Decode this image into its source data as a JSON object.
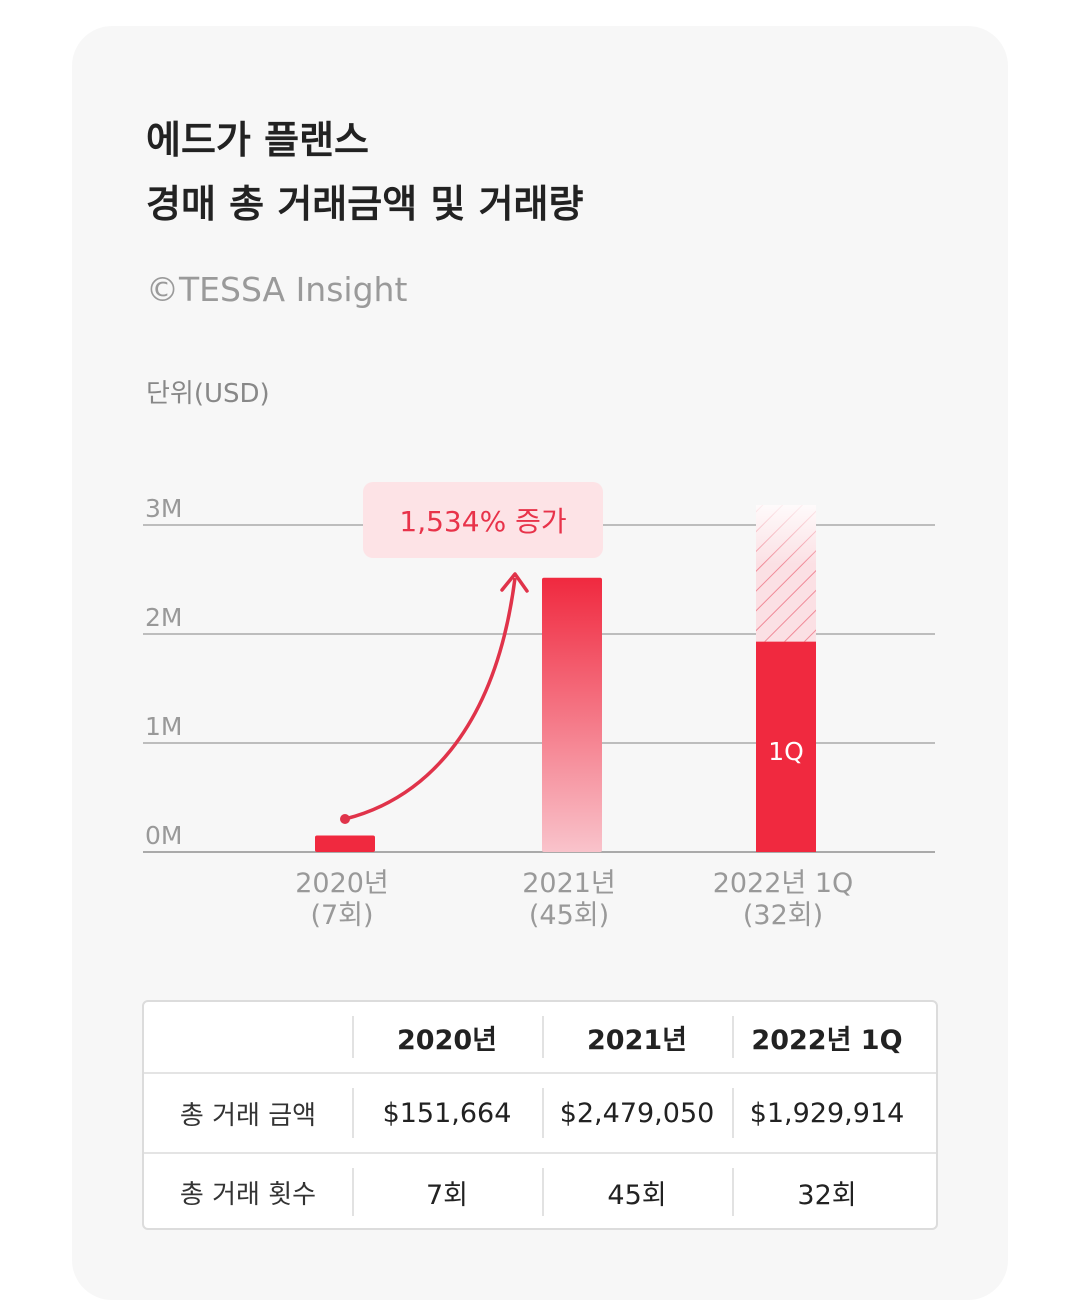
{
  "title": [
    "에드가 플랜스",
    "경매 총 거래금액 및 거래량"
  ],
  "credit": "©TESSA Insight",
  "unit_label": "단위(USD)",
  "annotation": "1,534% 증가",
  "colors": {
    "bar_red": "#f0293f",
    "annotation_text": "#e8334a",
    "annotation_bg": "#fde3e6",
    "grid": "#bdbdbd",
    "axis_text": "#999999"
  },
  "chart_data": {
    "type": "bar",
    "categories": [
      "2020년\n(7회)",
      "2021년\n(45회)",
      "2022년 1Q\n(32회)"
    ],
    "values": [
      151664,
      2479050,
      1929914
    ],
    "projected_2022_total": 3000000,
    "bar_labels": [
      "",
      "",
      "1Q"
    ],
    "yticks": [
      "0M",
      "1M",
      "2M",
      "3M"
    ],
    "ylim": [
      0,
      3000000
    ],
    "grid": true,
    "title": "",
    "xlabel": "",
    "ylabel": "단위(USD)"
  },
  "table": {
    "headers": [
      "",
      "2020년",
      "2021년",
      "2022년 1Q"
    ],
    "rows": [
      [
        "총 거래 금액",
        "$151,664",
        "$2,479,050",
        "$1,929,914"
      ],
      [
        "총 거래 횟수",
        "7회",
        "45회",
        "32회"
      ]
    ]
  }
}
